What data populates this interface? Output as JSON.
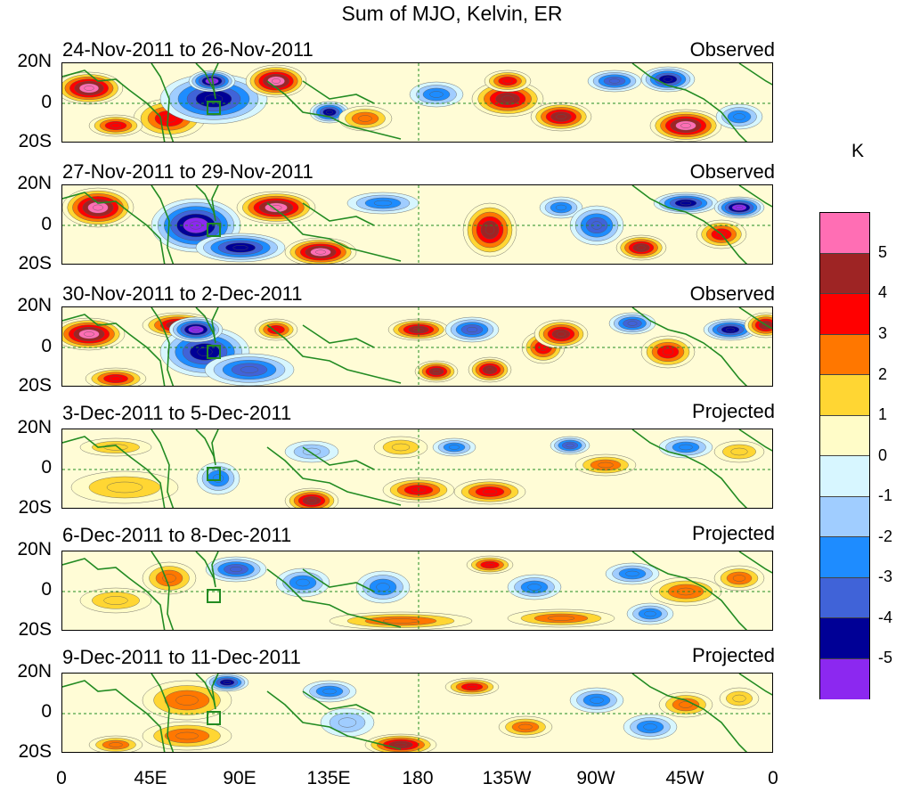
{
  "title": "Sum of MJO, Kelvin, ER",
  "panels": [
    {
      "period": "24-Nov-2011 to 26-Nov-2011",
      "status": "Observed"
    },
    {
      "period": "27-Nov-2011 to 29-Nov-2011",
      "status": "Observed"
    },
    {
      "period": "30-Nov-2011 to 2-Dec-2011",
      "status": "Observed"
    },
    {
      "period": "3-Dec-2011 to 5-Dec-2011",
      "status": "Projected"
    },
    {
      "period": "6-Dec-2011 to 8-Dec-2011",
      "status": "Projected"
    },
    {
      "period": "9-Dec-2011 to 11-Dec-2011",
      "status": "Projected"
    }
  ],
  "lat_labels": [
    "20N",
    "0",
    "20S"
  ],
  "lon_labels": [
    "0",
    "45E",
    "90E",
    "135E",
    "180",
    "135W",
    "90W",
    "45W",
    "0"
  ],
  "colorbar": {
    "unit": "K",
    "tick_labels": [
      "5",
      "4",
      "3",
      "2",
      "1",
      "0",
      "-1",
      "-2",
      "-3",
      "-4",
      "-5"
    ],
    "colors": [
      "#ff6eb4",
      "#9e2424",
      "#ff0000",
      "#ff7700",
      "#ffd633",
      "#fffcc8",
      "#d7f6ff",
      "#a0cdff",
      "#1e8cff",
      "#4063d8",
      "#000096",
      "#8c28f0"
    ]
  },
  "coast_color": "#228b22"
}
